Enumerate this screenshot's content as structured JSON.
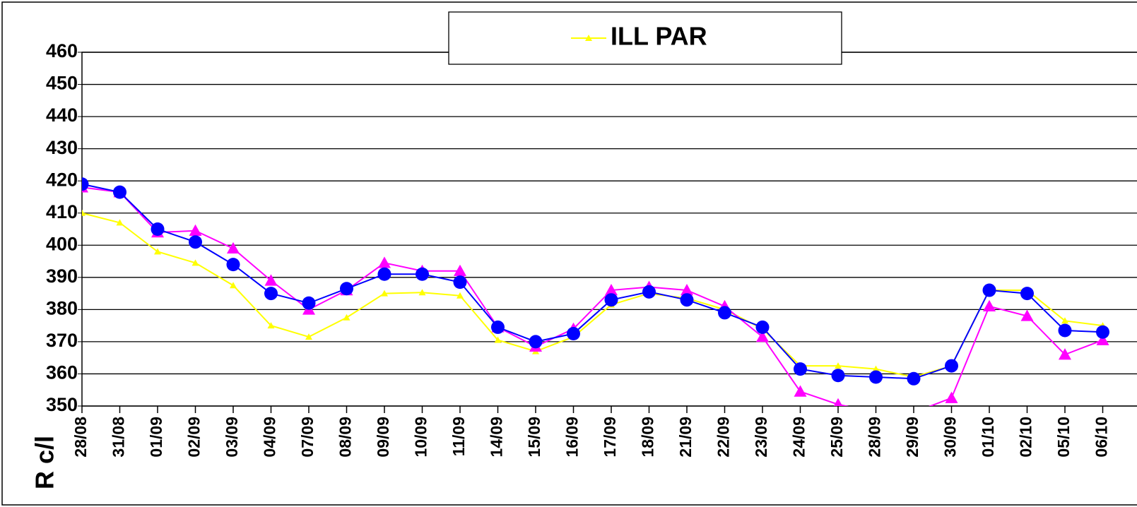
{
  "chart_data": {
    "type": "line",
    "y_label": "R c/l",
    "categories": [
      "28/08",
      "31/08",
      "01/09",
      "02/09",
      "03/09",
      "04/09",
      "07/09",
      "08/09",
      "09/09",
      "10/09",
      "11/09",
      "14/09",
      "15/09",
      "16/09",
      "17/09",
      "18/09",
      "21/09",
      "22/09",
      "23/09",
      "24/09",
      "25/09",
      "28/09",
      "29/09",
      "30/09",
      "01/10",
      "02/10",
      "05/10",
      "06/10"
    ],
    "series": [
      {
        "name": "ILL PAR",
        "color": "#ffff00",
        "marker": "triangle",
        "values": [
          410,
          407,
          398,
          394.5,
          387.5,
          375,
          371.5,
          377.5,
          385,
          385.3,
          384.3,
          370.5,
          367,
          371.5,
          381.5,
          385,
          383.5,
          380,
          374,
          362.5,
          362.5,
          361.5,
          359,
          362.5,
          386,
          386,
          376.5,
          375
        ]
      },
      {
        "color": "#ff00ff",
        "marker": "triangle",
        "values": [
          418,
          416.5,
          404,
          404.5,
          399,
          389,
          380,
          386,
          394.5,
          392,
          392,
          374.5,
          368.5,
          374,
          386,
          387,
          386,
          381,
          371.5,
          354.5,
          350.5,
          348,
          348,
          352.5,
          381,
          378,
          366,
          370.5
        ]
      },
      {
        "color": "#0000ff",
        "marker": "circle",
        "values": [
          419,
          416.5,
          405,
          401,
          394,
          385,
          382,
          386.5,
          391,
          391,
          388.5,
          374.5,
          370,
          372.5,
          383,
          385.5,
          383,
          379,
          374.5,
          361.5,
          359.5,
          359,
          358.5,
          362.5,
          386,
          385,
          373.5,
          373
        ]
      }
    ],
    "ylim": [
      350,
      460
    ],
    "yticks": [
      350,
      360,
      370,
      380,
      390,
      400,
      410,
      420,
      430,
      440,
      450,
      460
    ],
    "grid": true,
    "legend": "top"
  }
}
